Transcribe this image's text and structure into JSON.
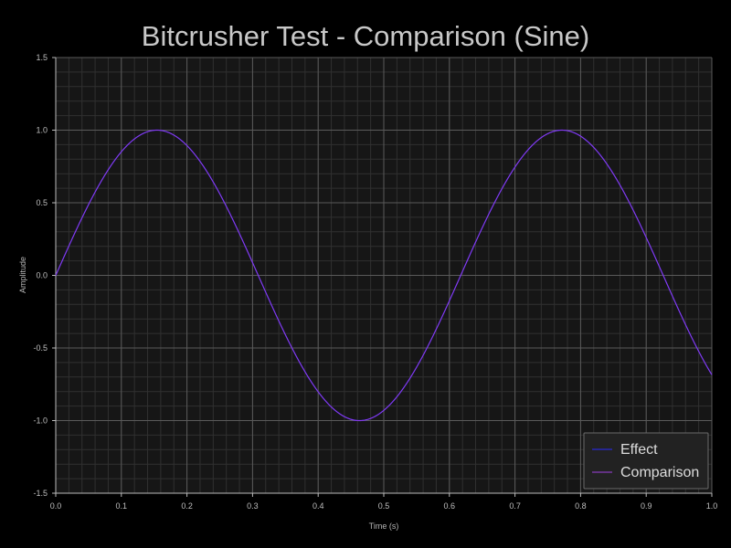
{
  "chart_data": {
    "type": "line",
    "title": "Bitcrusher Test - Comparison (Sine)",
    "xlabel": "Time (s)",
    "ylabel": "Amplitude",
    "xlim": [
      0.0,
      1.0
    ],
    "ylim": [
      -1.5,
      1.5
    ],
    "x_ticks": [
      "0.0",
      "0.1",
      "0.2",
      "0.3",
      "0.4",
      "0.5",
      "0.6",
      "0.7",
      "0.8",
      "0.9",
      "1.0"
    ],
    "y_ticks": [
      "1.5",
      "1.0",
      "0.5",
      "0.0",
      "-0.5",
      "-1.0",
      "-1.5"
    ],
    "grid": true,
    "legend_position": "bottom-right",
    "function": "sine",
    "frequency_hz": 1.62,
    "amplitude": 1.0,
    "series": [
      {
        "name": "Effect",
        "color": "#2a2aff",
        "x": [
          0.0,
          0.05,
          0.1,
          0.15,
          0.2,
          0.25,
          0.3,
          0.35,
          0.4,
          0.45,
          0.5,
          0.55,
          0.6,
          0.65,
          0.7,
          0.75,
          0.8,
          0.85,
          0.9,
          0.95,
          1.0
        ],
        "y": [
          0.0,
          0.49,
          0.86,
          1.0,
          0.88,
          0.53,
          0.04,
          -0.45,
          -0.84,
          -1.0,
          -0.9,
          -0.57,
          -0.08,
          0.42,
          0.82,
          1.0,
          0.92,
          0.6,
          0.12,
          -0.38,
          -0.74
        ]
      },
      {
        "name": "Comparison",
        "color": "#a040e0",
        "x": [
          0.0,
          0.05,
          0.1,
          0.15,
          0.2,
          0.25,
          0.3,
          0.35,
          0.4,
          0.45,
          0.5,
          0.55,
          0.6,
          0.65,
          0.7,
          0.75,
          0.8,
          0.85,
          0.9,
          0.95,
          1.0
        ],
        "y": [
          0.0,
          0.49,
          0.86,
          1.0,
          0.88,
          0.53,
          0.04,
          -0.45,
          -0.84,
          -1.0,
          -0.9,
          -0.57,
          -0.08,
          0.42,
          0.82,
          1.0,
          0.92,
          0.6,
          0.12,
          -0.38,
          -0.74
        ]
      }
    ],
    "colors": {
      "background": "#000000",
      "plot_background": "#161616",
      "grid_major": "#5a5a5a",
      "grid_minor": "#303030",
      "legend_background": "#222222",
      "legend_border": "#6a6a6a"
    }
  }
}
